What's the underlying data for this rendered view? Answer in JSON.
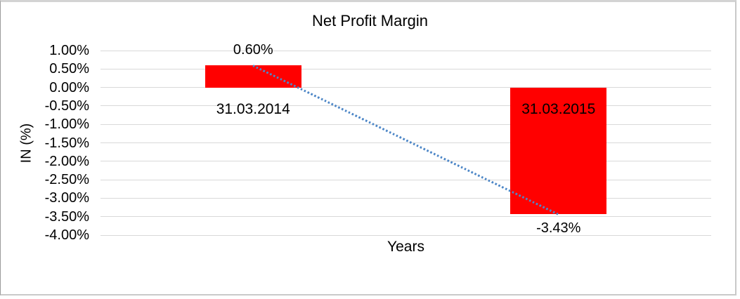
{
  "chart_data": {
    "type": "bar",
    "title": "Net Profit Margin",
    "xlabel": "Years",
    "ylabel": "IN (%)",
    "categories": [
      "31.03.2014",
      "31.03.2015"
    ],
    "series": [
      {
        "name": "Net Profit Margin",
        "values": [
          0.6,
          -3.43
        ]
      }
    ],
    "data_labels": [
      "0.60%",
      "-3.43%"
    ],
    "y_ticks": [
      "1.00%",
      "0.50%",
      "0.00%",
      "-0.50%",
      "-1.00%",
      "-1.50%",
      "-2.00%",
      "-2.50%",
      "-3.00%",
      "-3.50%",
      "-4.00%"
    ],
    "ylim": [
      -4.0,
      1.0
    ],
    "y_step": 0.5,
    "grid": true,
    "legend": "none",
    "bar_color": "#ff0000",
    "gridline_color": "#d9d9d9",
    "text_color": "#000000",
    "trendline": {
      "type": "linear",
      "style": "dotted",
      "color": "#4e87c7",
      "points": [
        0.6,
        -3.43
      ]
    }
  }
}
